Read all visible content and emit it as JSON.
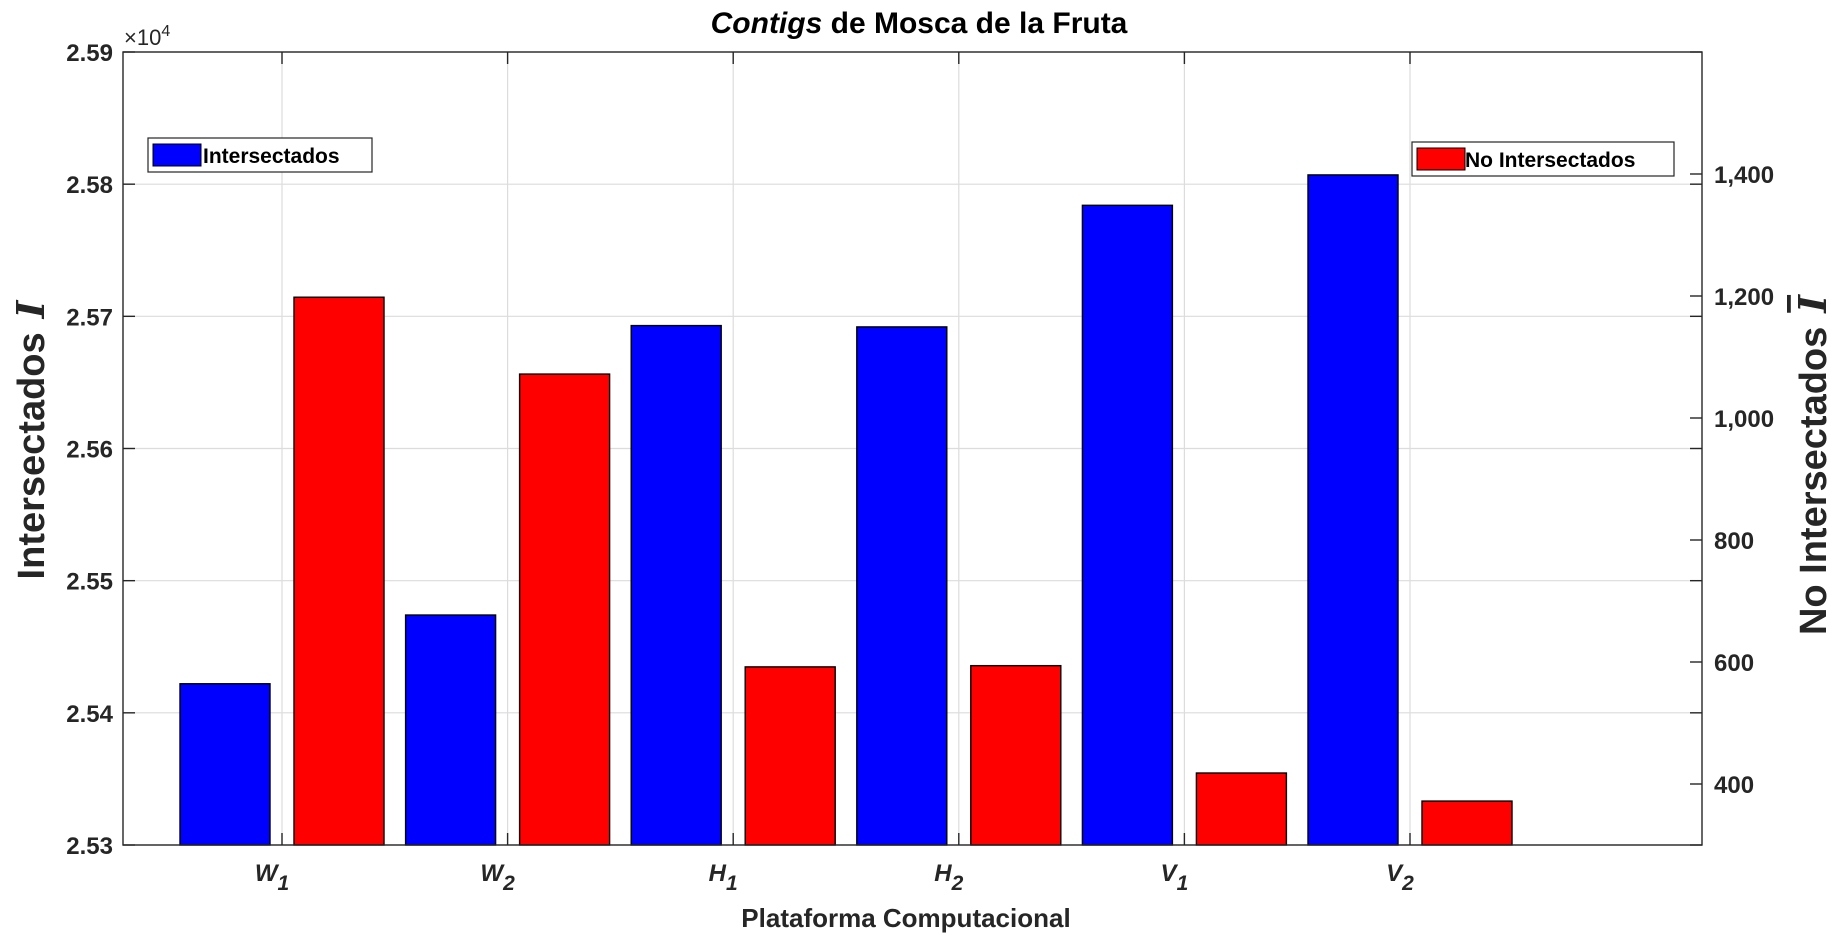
{
  "chart_data": {
    "type": "bar",
    "title_italic": "Contigs",
    "title_rest": " de Mosca de la Fruta",
    "xlabel": "Plataforma Computacional",
    "ylabel_left": "Intersectados",
    "ylabel_left_symbol": "I",
    "ylabel_right": "No Intersectados",
    "ylabel_right_symbol": "I",
    "exponent_base": "×10",
    "exponent_power": "4",
    "categories": [
      {
        "base": "W",
        "sub": "1"
      },
      {
        "base": "W",
        "sub": "2"
      },
      {
        "base": "H",
        "sub": "1"
      },
      {
        "base": "H",
        "sub": "2"
      },
      {
        "base": "V",
        "sub": "1"
      },
      {
        "base": "V",
        "sub": "2"
      }
    ],
    "series": [
      {
        "name": "Intersectados",
        "axis": "left",
        "color": "#0000ff",
        "values": [
          25422,
          25474,
          25693,
          25692,
          25784,
          25807
        ]
      },
      {
        "name": "No Intersectados",
        "axis": "right",
        "color": "#ff0000",
        "values": [
          1198,
          1072,
          592,
          594,
          418,
          372
        ]
      }
    ],
    "ylim_left": [
      25300,
      25900
    ],
    "yticks_left": [
      "2.53",
      "2.54",
      "2.55",
      "2.56",
      "2.57",
      "2.58",
      "2.59"
    ],
    "ytick_values_left": [
      25300,
      25400,
      25500,
      25600,
      25700,
      25800,
      25900
    ],
    "ylim_right": [
      300,
      1600
    ],
    "yticks_right": [
      "400",
      "600",
      "800",
      "1,000",
      "1,200",
      "1,400"
    ],
    "ytick_values_right": [
      400,
      600,
      800,
      1000,
      1200,
      1400
    ],
    "grid": true,
    "legend_left_placement": "top-left",
    "legend_right_placement": "top-right"
  }
}
